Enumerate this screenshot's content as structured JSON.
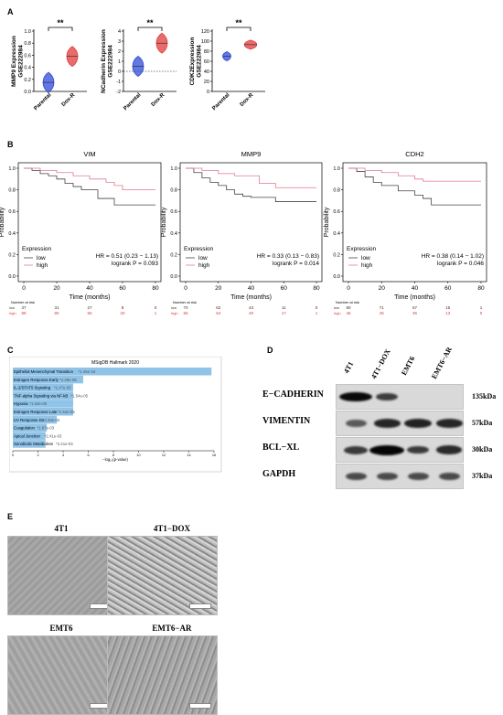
{
  "panels": {
    "a": "A",
    "b": "B",
    "c": "C",
    "d": "D",
    "e": "E"
  },
  "violin": {
    "x_ticks": [
      "Parental",
      "Dox-R"
    ],
    "sig": "**",
    "plots": [
      {
        "ylabel": "MMP9 Expression\nGSE222984",
        "ticks": [
          "0.0",
          "0.2",
          "0.4",
          "0.6",
          "0.8",
          "1.0"
        ],
        "values": {
          "Parental": 0.15,
          "Dox-R": 0.58
        }
      },
      {
        "ylabel": "NCadherin Expression\nGSE222984",
        "ticks": [
          "-2",
          "-1",
          "0",
          "1",
          "2",
          "3",
          "4"
        ],
        "values": {
          "Parental": 0.5,
          "Dox-R": 2.8
        }
      },
      {
        "ylabel": "CDK2Expression\nGSE222984",
        "ticks": [
          "0",
          "20",
          "40",
          "60",
          "80",
          "100",
          "120"
        ],
        "values": {
          "Parental": 70,
          "Dox-R": 93
        }
      }
    ]
  },
  "km": {
    "xlabel": "Time (months)",
    "ylabel": "Probability",
    "xticks": [
      "0",
      "20",
      "40",
      "60",
      "80"
    ],
    "yticks": [
      "0.0",
      "0.2",
      "0.4",
      "0.6",
      "0.8",
      "1.0"
    ],
    "legend_title": "Expression",
    "legend_items": [
      "low",
      "high"
    ],
    "risk_title": "Number at risk",
    "plots": [
      {
        "title": "VIM",
        "hr": "HR = 0.51 (0.23 − 1.13)",
        "p": "logrank P = 0.093",
        "low": [
          "37",
          "31",
          "27",
          "8",
          "0"
        ],
        "high": [
          "89",
          "80",
          "55",
          "20",
          "1"
        ]
      },
      {
        "title": "MMP9",
        "hr": "HR = 0.33 (0.13 − 0.83)",
        "p": "logrank P = 0.014",
        "low": [
          "70",
          "62",
          "43",
          "11",
          "0"
        ],
        "high": [
          "56",
          "54",
          "49",
          "17",
          "1"
        ]
      },
      {
        "title": "CDH2",
        "hr": "HR = 0.38 (0.14 − 1.02)",
        "p": "logrank P = 0.046",
        "low": [
          "80",
          "71",
          "57",
          "15",
          "1"
        ],
        "high": [
          "46",
          "45",
          "35",
          "13",
          "0"
        ]
      }
    ]
  },
  "enrich": {
    "title": "MSigDB Hallmark 2020",
    "xlabel": "−log₁₀(p-value)",
    "xticks": [
      "0",
      "2",
      "4",
      "6",
      "8",
      "10",
      "12",
      "14",
      "16"
    ],
    "terms": [
      {
        "label": "Epithelial Mesenchymal Transition",
        "p": "*1.45e-16",
        "value": 15.8
      },
      {
        "label": "Estrogen Response Early",
        "p": "*2.29e-06",
        "value": 5.6
      },
      {
        "label": "IL-2/STAT5 Signaling",
        "p": "*1.47e-05",
        "value": 4.8
      },
      {
        "label": "TNF-alpha Signaling via NF-kB",
        "p": "*1.54e-05",
        "value": 4.8
      },
      {
        "label": "Hypoxia",
        "p": "*1.54e-05",
        "value": 4.8
      },
      {
        "label": "Estrogen Response Late",
        "p": "*1.54e-05",
        "value": 4.8
      },
      {
        "label": "UV Response Dn",
        "p": "*3.33e-04",
        "value": 3.5
      },
      {
        "label": "Coagulation",
        "p": "*1.87e-03",
        "value": 2.7
      },
      {
        "label": "Apical Junction",
        "p": "*2.41e-03",
        "value": 2.6
      },
      {
        "label": "Xenobiotic Metabolism",
        "p": "*2.41e-03",
        "value": 2.6
      }
    ]
  },
  "western": {
    "lanes": [
      "4T1",
      "4T1−DOX",
      "EMT6",
      "EMT6−AR"
    ],
    "rows": [
      {
        "label": "E−CADHERIN",
        "kda": "135kDa"
      },
      {
        "label": "VIMENTIN",
        "kda": "57kDa"
      },
      {
        "label": "BCL−XL",
        "kda": "30kDa"
      },
      {
        "label": "GAPDH",
        "kda": "37kDa"
      }
    ]
  },
  "micro": {
    "labels": [
      "4T1",
      "4T1−DOX",
      "EMT6",
      "EMT6−AR"
    ]
  },
  "colors": {
    "blue": "#2f4bd6",
    "red": "#e23b3b",
    "bar": "#8fc3e8",
    "km_red": "#e27a8f"
  }
}
